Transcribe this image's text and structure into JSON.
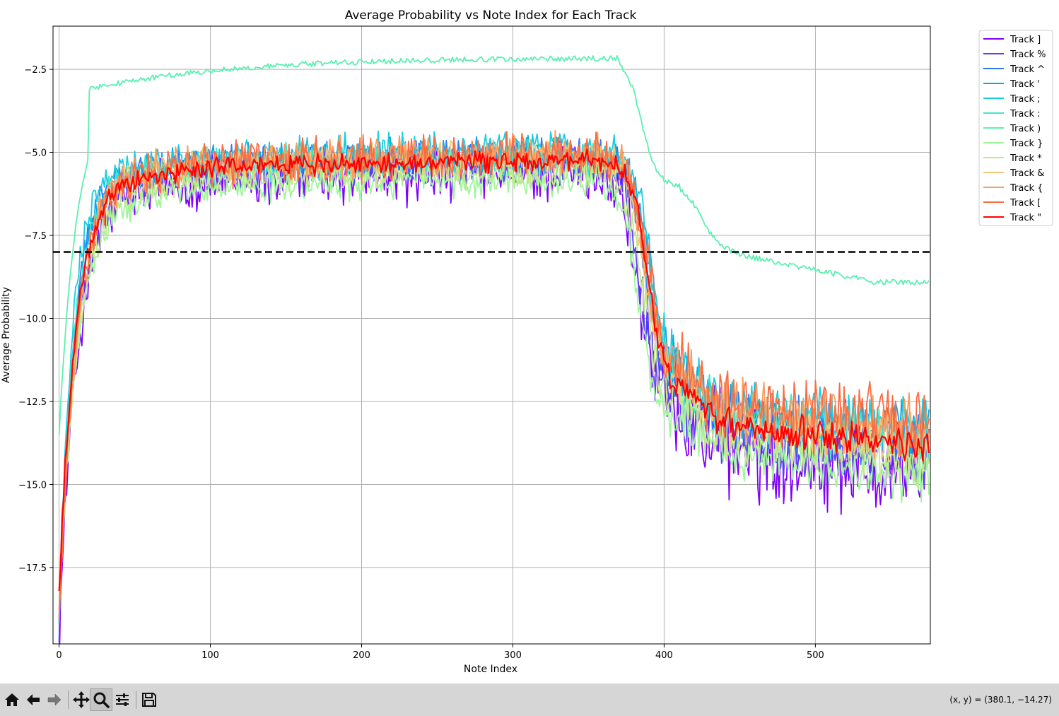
{
  "chart_data": {
    "type": "line",
    "title": "Average Probability vs Note Index for Each Track",
    "xlabel": "Note Index",
    "ylabel": "Average Probability",
    "xlim": [
      -4,
      576
    ],
    "ylim": [
      -19.8,
      -1.2
    ],
    "xticks": [
      0,
      100,
      200,
      300,
      400,
      500
    ],
    "xtick_labels": [
      "0",
      "100",
      "200",
      "300",
      "400",
      "500"
    ],
    "yticks": [
      -2.5,
      -5.0,
      -7.5,
      -10.0,
      -12.5,
      -15.0,
      -17.5
    ],
    "ytick_labels": [
      "−2.5",
      "−5.0",
      "−7.5",
      "−10.0",
      "−12.5",
      "−15.0",
      "−17.5"
    ],
    "grid": true,
    "legend_position": "outside-upper-right",
    "threshold_line": {
      "y": -8.0,
      "style": "dashed",
      "color": "#000000"
    },
    "n_points": 576,
    "series": [
      {
        "name": "Track ]",
        "color": "#8000ff",
        "profile": {
          "start": -19.6,
          "plateau": -5.6,
          "rise": 12,
          "fall_at": 383,
          "fall_width": 12,
          "tail": -13.7,
          "noise": 0.75
        }
      },
      {
        "name": "Track %",
        "color": "#5a3cfa",
        "profile": {
          "start": -19.3,
          "plateau": -5.35,
          "rise": 11,
          "fall_at": 384,
          "fall_width": 12,
          "tail": -13.4,
          "noise": 0.5
        }
      },
      {
        "name": "Track ^",
        "color": "#3278f3",
        "profile": {
          "start": -19.0,
          "plateau": -5.1,
          "rise": 10,
          "fall_at": 388,
          "fall_width": 12,
          "tail": -12.9,
          "noise": 0.45
        }
      },
      {
        "name": "Track '",
        "color": "#0ba8e8",
        "profile": {
          "start": -19.0,
          "plateau": -5.05,
          "rise": 10,
          "fall_at": 390,
          "fall_width": 12,
          "tail": -12.6,
          "noise": 0.45
        }
      },
      {
        "name": "Track ;",
        "color": "#18cde0",
        "profile": {
          "start": -18.8,
          "plateau": -4.95,
          "rise": 9,
          "fall_at": 391,
          "fall_width": 12,
          "tail": -12.5,
          "noise": 0.45
        }
      },
      {
        "name": "Track :",
        "color": "#40e6cc",
        "profile": {
          "start": -18.8,
          "plateau": -5.2,
          "rise": 10,
          "fall_at": 389,
          "fall_width": 12,
          "tail": -12.8,
          "noise": 0.45
        }
      },
      {
        "name": "Track )",
        "color": "#5af0b0",
        "profile": {
          "kind": "special",
          "start": -13.5,
          "plateau": -2.15,
          "rise": 30,
          "noise": 0.08
        }
      },
      {
        "name": "Track }",
        "color": "#9ef69a",
        "profile": {
          "start": -18.8,
          "plateau": -5.85,
          "rise": 12,
          "fall_at": 383,
          "fall_width": 12,
          "tail": -13.9,
          "noise": 0.4
        }
      },
      {
        "name": "Track *",
        "color": "#c2e78c",
        "profile": {
          "start": -18.9,
          "plateau": -5.55,
          "rise": 12,
          "fall_at": 385,
          "fall_width": 12,
          "tail": -13.4,
          "noise": 0.4
        }
      },
      {
        "name": "Track &",
        "color": "#f2c878",
        "profile": {
          "start": -19.2,
          "plateau": -5.15,
          "rise": 11,
          "fall_at": 387,
          "fall_width": 12,
          "tail": -12.9,
          "noise": 0.4
        }
      },
      {
        "name": "Track {",
        "color": "#fa9c5e",
        "profile": {
          "start": -19.2,
          "plateau": -5.05,
          "rise": 11,
          "fall_at": 387,
          "fall_width": 12,
          "tail": -12.6,
          "noise": 0.5
        }
      },
      {
        "name": "Track [",
        "color": "#fb6c42",
        "profile": {
          "start": -19.0,
          "plateau": -5.1,
          "rise": 11,
          "fall_at": 389,
          "fall_width": 12,
          "tail": -12.4,
          "noise": 0.55
        }
      },
      {
        "name": "Track \"",
        "color": "#ff0000",
        "profile": {
          "start": -18.3,
          "plateau": -5.25,
          "rise": 11,
          "fall_at": 389,
          "fall_width": 12,
          "tail": -13.0,
          "noise": 0.25
        }
      }
    ]
  },
  "toolbar": {
    "buttons": [
      {
        "icon": "home-icon"
      },
      {
        "icon": "back-arrow-icon"
      },
      {
        "icon": "forward-arrow-icon"
      },
      {
        "icon": "pan-icon"
      },
      {
        "icon": "zoom-icon"
      },
      {
        "icon": "configure-subplots-icon"
      },
      {
        "icon": "save-icon"
      }
    ],
    "coords": "(x, y) = (380.1, −14.27)"
  }
}
